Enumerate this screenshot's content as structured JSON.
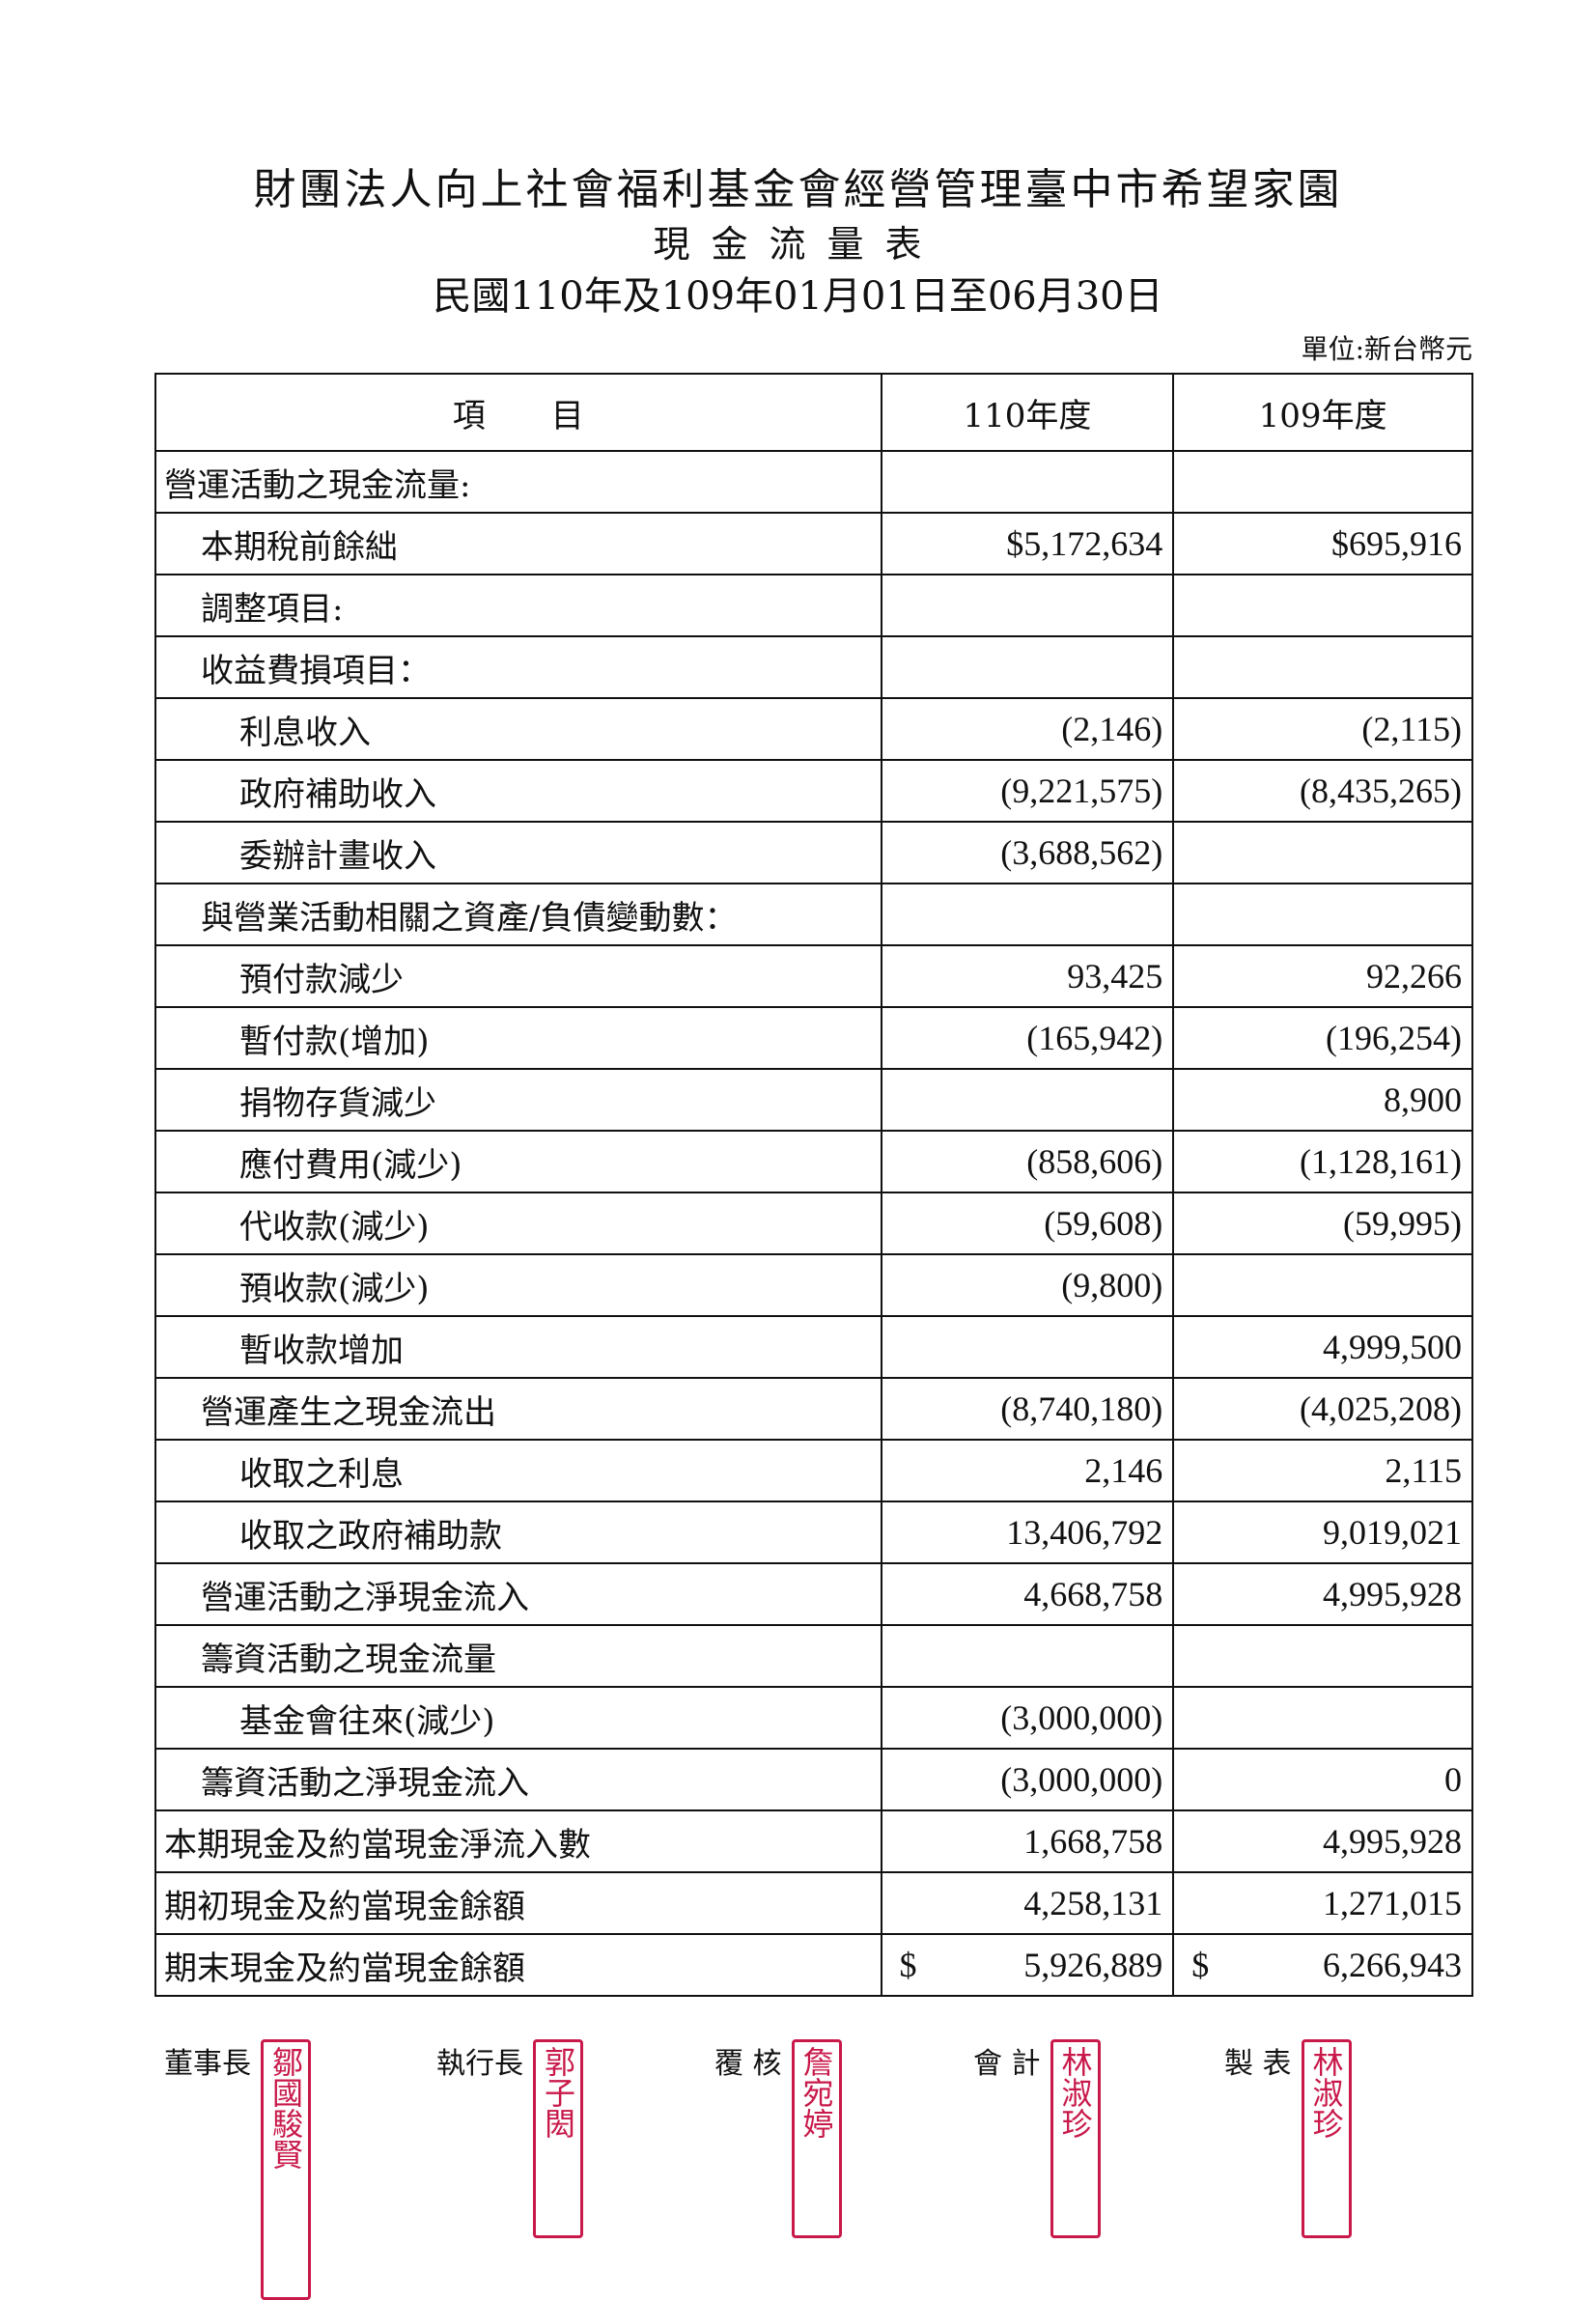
{
  "header": {
    "org": "財團法人向上社會福利基金會經營管理臺中市希望家園",
    "title": "現金流量表",
    "period": "民國110年及109年01月01日至06月30日",
    "unit": "單位:新台幣元"
  },
  "table": {
    "columns": [
      "項　　目",
      "110年度",
      "109年度"
    ],
    "rows": [
      {
        "label": "營運活動之現金流量:",
        "level": 0,
        "y110": "",
        "y109": ""
      },
      {
        "label": "本期稅前餘絀",
        "level": 1,
        "y110": "$5,172,634",
        "y109": "$695,916"
      },
      {
        "label": "調整項目:",
        "level": 1,
        "y110": "",
        "y109": ""
      },
      {
        "label": "收益費損項目：",
        "level": 1,
        "y110": "",
        "y109": ""
      },
      {
        "label": "利息收入",
        "level": 2,
        "y110": "(2,146)",
        "y109": "(2,115)"
      },
      {
        "label": "政府補助收入",
        "level": 2,
        "y110": "(9,221,575)",
        "y109": "(8,435,265)"
      },
      {
        "label": "委辦計畫收入",
        "level": 2,
        "y110": "(3,688,562)",
        "y109": ""
      },
      {
        "label": "與營業活動相關之資產/負債變動數：",
        "level": 1,
        "y110": "",
        "y109": ""
      },
      {
        "label": "預付款減少",
        "level": 2,
        "y110": "93,425",
        "y109": "92,266"
      },
      {
        "label": "暫付款(增加)",
        "level": 2,
        "y110": "(165,942)",
        "y109": "(196,254)"
      },
      {
        "label": "捐物存貨減少",
        "level": 2,
        "y110": "",
        "y109": "8,900"
      },
      {
        "label": "應付費用(減少)",
        "level": 2,
        "y110": "(858,606)",
        "y109": "(1,128,161)"
      },
      {
        "label": "代收款(減少)",
        "level": 2,
        "y110": "(59,608)",
        "y109": "(59,995)"
      },
      {
        "label": "預收款(減少)",
        "level": 2,
        "y110": "(9,800)",
        "y109": ""
      },
      {
        "label": "暫收款增加",
        "level": 2,
        "y110": "",
        "y109": "4,999,500"
      },
      {
        "label": "營運產生之現金流出",
        "level": 1,
        "y110": "(8,740,180)",
        "y109": "(4,025,208)"
      },
      {
        "label": "收取之利息",
        "level": 2,
        "y110": "2,146",
        "y109": "2,115"
      },
      {
        "label": "收取之政府補助款",
        "level": 2,
        "y110": "13,406,792",
        "y109": "9,019,021"
      },
      {
        "label": "營運活動之淨現金流入",
        "level": 1,
        "y110": "4,668,758",
        "y109": "4,995,928"
      },
      {
        "label": "籌資活動之現金流量",
        "level": 1,
        "y110": "",
        "y109": ""
      },
      {
        "label": "基金會往來(減少)",
        "level": 2,
        "y110": "(3,000,000)",
        "y109": ""
      },
      {
        "label": "籌資活動之淨現金流入",
        "level": 1,
        "y110": "(3,000,000)",
        "y109": "0"
      },
      {
        "label": "本期現金及約當現金淨流入數",
        "level": 0,
        "y110": "1,668,758",
        "y109": "4,995,928"
      },
      {
        "label": "期初現金及約當現金餘額",
        "level": 0,
        "y110": "4,258,131",
        "y109": "1,271,015"
      },
      {
        "label": "期末現金及約當現金餘額",
        "level": 0,
        "y110": "5,926,889",
        "y109": "6,266,943",
        "currency": "$"
      }
    ]
  },
  "signatures": [
    {
      "role": "董事長",
      "seal": "鄒國駿賢",
      "seal_color": "#c8194a"
    },
    {
      "role": "執行長",
      "seal": "郭子閎",
      "seal_color": "#c8194a"
    },
    {
      "role": "覆 核",
      "seal": "詹宛婷",
      "seal_color": "#c8194a"
    },
    {
      "role": "會 計",
      "seal": "林淑珍",
      "seal_color": "#c8194a"
    },
    {
      "role": "製 表",
      "seal": "林淑珍",
      "seal_color": "#c8194a"
    }
  ]
}
